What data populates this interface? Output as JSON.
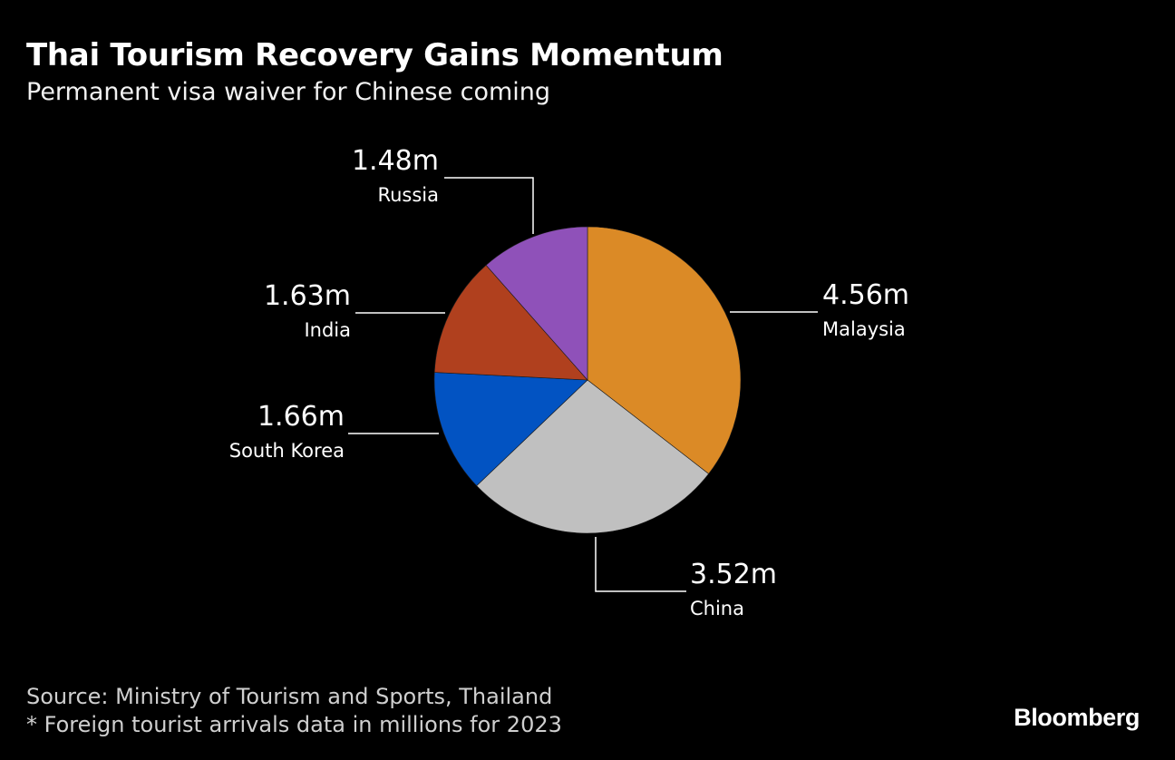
{
  "header": {
    "title": "Thai Tourism Recovery Gains Momentum",
    "subtitle": "Permanent visa waiver for Chinese coming"
  },
  "chart_data": {
    "type": "pie",
    "unit": "m",
    "slices": [
      {
        "label": "Malaysia",
        "value": 4.56,
        "display": "4.56m",
        "color": "#db8a26"
      },
      {
        "label": "China",
        "value": 3.52,
        "display": "3.52m",
        "color": "#c0c0c0"
      },
      {
        "label": "South Korea",
        "value": 1.66,
        "display": "1.66m",
        "color": "#0253c2"
      },
      {
        "label": "India",
        "value": 1.63,
        "display": "1.63m",
        "color": "#b0401e"
      },
      {
        "label": "Russia",
        "value": 1.48,
        "display": "1.48m",
        "color": "#8f51b9"
      }
    ],
    "start": "12 o'clock",
    "direction": "clockwise"
  },
  "footer": {
    "source": "Source: Ministry of Tourism and Sports, Thailand",
    "note": "* Foreign tourist arrivals data in millions for 2023",
    "brand": "Bloomberg"
  }
}
